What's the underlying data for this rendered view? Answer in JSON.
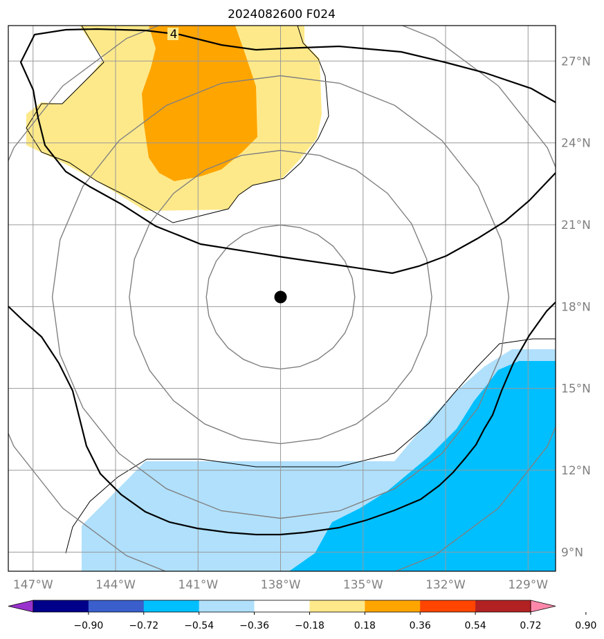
{
  "title": "2024082600 F024",
  "map": {
    "longitude_labels": [
      "147°W",
      "144°W",
      "141°W",
      "138°W",
      "135°W",
      "132°W",
      "129°W"
    ],
    "latitude_labels": [
      "9°N",
      "12°N",
      "15°N",
      "18°N",
      "21°N",
      "24°N",
      "27°N"
    ],
    "longitudes": [
      -147,
      -144,
      -141,
      -138,
      -135,
      -132,
      -129
    ],
    "latitudes": [
      9,
      12,
      15,
      18,
      21,
      24,
      27
    ],
    "extent": {
      "lon_min": -147.9,
      "lon_max": -128.0,
      "lat_min": 8.3,
      "lat_max": 28.3
    },
    "gridlines": true,
    "center_marker": {
      "lon": -138.0,
      "lat": 18.35,
      "label": ""
    },
    "range_rings_deg": [
      2.7,
      5.5,
      8.3,
      11.2
    ],
    "contour_label": "4",
    "field_colors": {
      "positive_low": "#fee98a",
      "positive_mid": "#ffa500",
      "negative_low": "#b0e0fc",
      "negative_mid": "#00bfff"
    }
  },
  "colorbar": {
    "ticks": [
      "−0.90",
      "−0.72",
      "−0.54",
      "−0.36",
      "−0.18",
      "0.18",
      "0.36",
      "0.54",
      "0.72",
      "0.90"
    ],
    "colors": [
      "#9932cc",
      "#00008b",
      "#3a5fcd",
      "#00bfff",
      "#b0e0fc",
      "#ffffff",
      "#fee98a",
      "#ffa500",
      "#ff4500",
      "#b22222",
      "#ff88aa"
    ],
    "extend": "both"
  }
}
